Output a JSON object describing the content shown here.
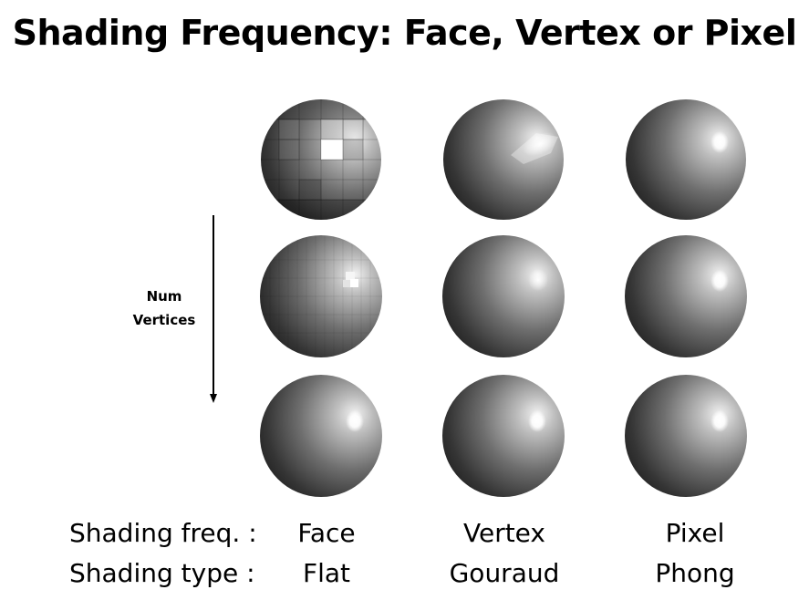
{
  "title": "Shading Frequency: Face, Vertex or Pixel",
  "axis": {
    "label_line1": "Num",
    "label_line2": "Vertices"
  },
  "rows": {
    "freq_label": "Shading freq. :",
    "type_label": "Shading type :"
  },
  "columns": [
    {
      "freq": "Face",
      "type": "Flat"
    },
    {
      "freq": "Vertex",
      "type": "Gouraud"
    },
    {
      "freq": "Pixel",
      "type": "Phong"
    }
  ],
  "colors": {
    "sphere_light": "#f4f4f4",
    "sphere_dark": "#1e1e1e",
    "highlight": "#ffffff"
  }
}
